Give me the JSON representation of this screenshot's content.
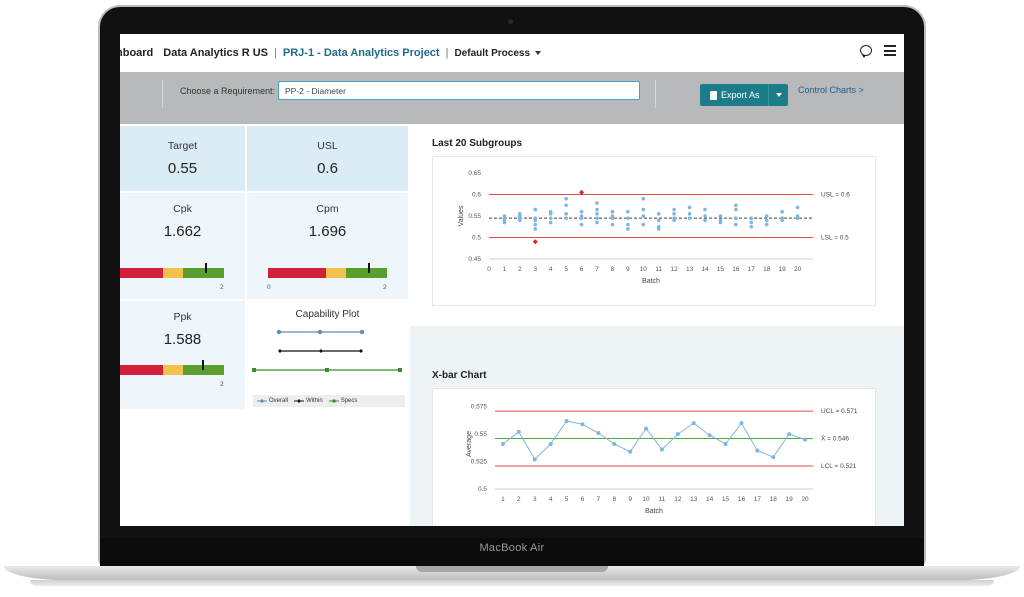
{
  "device": {
    "label": "MacBook Air"
  },
  "nav": {
    "dashboard_fragment": "nboard",
    "org": "Data Analytics R US",
    "project": "PRJ-1 - Data Analytics Project",
    "process": "Default Process"
  },
  "toolbar": {
    "requirement_label": "Choose a Requirement:",
    "requirement_value": "PP-2 - Diameter",
    "export_label": "Export As",
    "control_charts_link": "Control Charts >"
  },
  "stats": {
    "target": {
      "label": "Target",
      "value": "0.55"
    },
    "usl": {
      "label": "USL",
      "value": "0.6"
    },
    "cpk": {
      "label": "Cpk",
      "value": "1.662",
      "level": 1.662,
      "axis_max": "2"
    },
    "cpm": {
      "label": "Cpm",
      "value": "1.696",
      "level": 1.696,
      "axis_min": "0",
      "axis_max": "2"
    },
    "ppk": {
      "label": "Ppk",
      "value": "1.588",
      "level": 1.588,
      "axis_max": "2"
    },
    "gauge_colors": {
      "red": "#d21f3c",
      "yellow": "#f2c14e",
      "green": "#5a9e2e"
    }
  },
  "capability": {
    "title": "Capability Plot",
    "legend": [
      "Overall",
      "Within",
      "Specs"
    ],
    "colors": {
      "overall": "#5b8fb3",
      "within": "#111111",
      "specs": "#3c8a2c"
    }
  },
  "chart_data": [
    {
      "type": "scatter",
      "title": "Last 20 Subgroups",
      "xlabel": "Batch",
      "ylabel": "Values",
      "x_ticks": [
        "0",
        "1",
        "2",
        "3",
        "4",
        "5",
        "6",
        "7",
        "8",
        "9",
        "10",
        "11",
        "12",
        "13",
        "14",
        "15",
        "16",
        "17",
        "18",
        "19",
        "20"
      ],
      "y_ticks": [
        "0.45",
        "0.5",
        "0.55",
        "0.6",
        "0.65"
      ],
      "ylim": [
        0.45,
        0.65
      ],
      "xlim": [
        0,
        21
      ],
      "reference_lines": [
        {
          "label": "USL = 0.6",
          "value": 0.6,
          "color": "#e14b4b"
        },
        {
          "label": "LSL = 0.5",
          "value": 0.5,
          "color": "#e14b4b"
        }
      ],
      "mean_line": 0.545,
      "points": [
        [
          1,
          0.54
        ],
        [
          1,
          0.55
        ],
        [
          1,
          0.535
        ],
        [
          1,
          0.545
        ],
        [
          2,
          0.55
        ],
        [
          2,
          0.545
        ],
        [
          2,
          0.54
        ],
        [
          2,
          0.555
        ],
        [
          3,
          0.565
        ],
        [
          3,
          0.545
        ],
        [
          3,
          0.53
        ],
        [
          3,
          0.52
        ],
        [
          3,
          0.54
        ],
        [
          4,
          0.56
        ],
        [
          4,
          0.545
        ],
        [
          4,
          0.535
        ],
        [
          4,
          0.555
        ],
        [
          5,
          0.59
        ],
        [
          5,
          0.575
        ],
        [
          5,
          0.555
        ],
        [
          5,
          0.545
        ],
        [
          6,
          0.56
        ],
        [
          6,
          0.55
        ],
        [
          6,
          0.53
        ],
        [
          6,
          0.545
        ],
        [
          7,
          0.58
        ],
        [
          7,
          0.565
        ],
        [
          7,
          0.545
        ],
        [
          7,
          0.535
        ],
        [
          7,
          0.555
        ],
        [
          8,
          0.56
        ],
        [
          8,
          0.545
        ],
        [
          8,
          0.53
        ],
        [
          8,
          0.55
        ],
        [
          9,
          0.56
        ],
        [
          9,
          0.545
        ],
        [
          9,
          0.53
        ],
        [
          9,
          0.52
        ],
        [
          10,
          0.59
        ],
        [
          10,
          0.565
        ],
        [
          10,
          0.55
        ],
        [
          10,
          0.53
        ],
        [
          11,
          0.555
        ],
        [
          11,
          0.54
        ],
        [
          11,
          0.525
        ],
        [
          11,
          0.52
        ],
        [
          12,
          0.565
        ],
        [
          12,
          0.545
        ],
        [
          12,
          0.54
        ],
        [
          12,
          0.555
        ],
        [
          13,
          0.57
        ],
        [
          13,
          0.555
        ],
        [
          13,
          0.545
        ],
        [
          14,
          0.565
        ],
        [
          14,
          0.55
        ],
        [
          14,
          0.54
        ],
        [
          15,
          0.55
        ],
        [
          15,
          0.54
        ],
        [
          15,
          0.535
        ],
        [
          16,
          0.575
        ],
        [
          16,
          0.565
        ],
        [
          16,
          0.545
        ],
        [
          16,
          0.53
        ],
        [
          17,
          0.545
        ],
        [
          17,
          0.535
        ],
        [
          17,
          0.525
        ],
        [
          18,
          0.55
        ],
        [
          18,
          0.54
        ],
        [
          18,
          0.53
        ],
        [
          19,
          0.56
        ],
        [
          19,
          0.545
        ],
        [
          19,
          0.54
        ],
        [
          20,
          0.57
        ],
        [
          20,
          0.55
        ],
        [
          20,
          0.545
        ]
      ],
      "outliers": [
        [
          6,
          0.605
        ],
        [
          3,
          0.49
        ]
      ],
      "point_color": "#7fb6e0",
      "outlier_color": "#e02020"
    },
    {
      "type": "line",
      "title": "X-bar Chart",
      "xlabel": "Batch",
      "ylabel": "Average",
      "x": [
        1,
        2,
        3,
        4,
        5,
        6,
        7,
        8,
        9,
        10,
        11,
        12,
        13,
        14,
        15,
        16,
        17,
        18,
        19,
        20
      ],
      "values": [
        0.541,
        0.552,
        0.527,
        0.541,
        0.562,
        0.559,
        0.551,
        0.541,
        0.534,
        0.555,
        0.536,
        0.55,
        0.56,
        0.549,
        0.541,
        0.56,
        0.535,
        0.529,
        0.55,
        0.545
      ],
      "y_ticks": [
        "0.5",
        "0.525",
        "0.55",
        "0.575"
      ],
      "ylim": [
        0.5,
        0.582
      ],
      "xlim": [
        0.5,
        20.5
      ],
      "reference_lines": [
        {
          "label": "UCL = 0.571",
          "value": 0.571,
          "color": "#e14b4b"
        },
        {
          "label": "X̄ = 0.546",
          "value": 0.546,
          "color": "#4caa3c"
        },
        {
          "label": "LCL = 0.521",
          "value": 0.521,
          "color": "#e14b4b"
        }
      ],
      "line_color": "#7fb6e0"
    }
  ]
}
